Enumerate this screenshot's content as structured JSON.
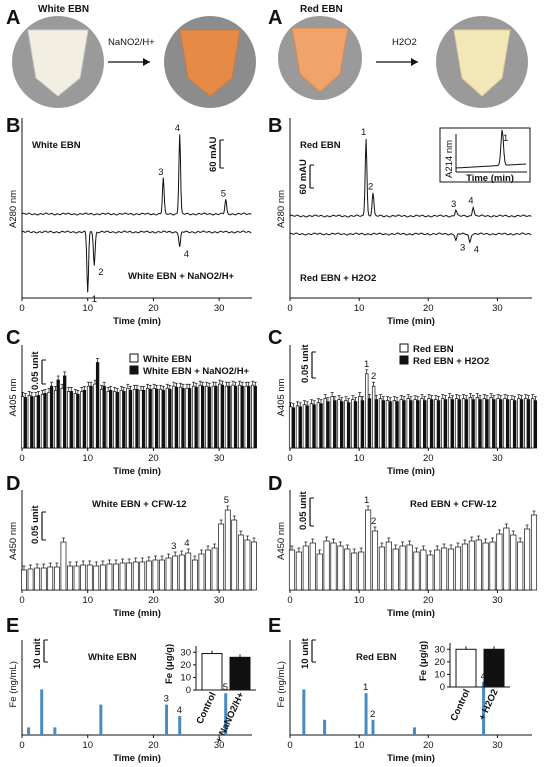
{
  "panels": {
    "A_left": {
      "label": "A",
      "sample_before": "White EBN",
      "arrow_label": "NaNO2/H+",
      "sample_before_color": "#f2efe2",
      "sample_after_color": "#e58a47"
    },
    "A_right": {
      "label": "A",
      "sample_before": "Red EBN",
      "arrow_label": "H2O2",
      "sample_before_color": "#f0a36a",
      "sample_after_color": "#f3e7b8"
    }
  },
  "chart_data": [
    {
      "id": "B_left",
      "panel": "B",
      "type": "line",
      "title": "White EBN",
      "ylabel": "A280 nm",
      "xlabel": "Time (min)",
      "xlim": [
        0,
        35
      ],
      "xticks": [
        0,
        10,
        20,
        30
      ],
      "scale_bar": "60 mAU",
      "series": [
        {
          "name": "White EBN",
          "peaks": [
            {
              "label": "3",
              "x": 21.5,
              "h": 0.45
            },
            {
              "label": "4",
              "x": 24,
              "h": 1.0
            },
            {
              "label": "5",
              "x": 31,
              "h": 0.18
            }
          ]
        },
        {
          "name": "White EBN + NaNO2/H+",
          "peaks": [
            {
              "label": "1",
              "x": 10,
              "h": -1.0
            },
            {
              "label": "2",
              "x": 11,
              "h": -0.55
            },
            {
              "label": "4",
              "x": 24,
              "h": -0.25
            }
          ]
        }
      ]
    },
    {
      "id": "B_right",
      "panel": "B",
      "type": "line",
      "title": "Red EBN",
      "ylabel": "A280 nm",
      "xlabel": "Time (min)",
      "xlim": [
        0,
        35
      ],
      "xticks": [
        0,
        10,
        20,
        30
      ],
      "scale_bar": "60 mAU",
      "inset": {
        "ylabel": "A214 nm",
        "xlabel": "Time (min)",
        "peak": "1"
      },
      "series": [
        {
          "name": "Red EBN",
          "peaks": [
            {
              "label": "1",
              "x": 11,
              "h": 1.0
            },
            {
              "label": "2",
              "x": 12,
              "h": 0.3
            },
            {
              "label": "3",
              "x": 24,
              "h": 0.08
            },
            {
              "label": "4",
              "x": 26.5,
              "h": 0.12
            }
          ]
        },
        {
          "name": "Red EBN + H2O2",
          "peaks": [
            {
              "label": "3",
              "x": 24,
              "h": -0.22
            },
            {
              "label": "4",
              "x": 26,
              "h": -0.28
            }
          ]
        }
      ]
    },
    {
      "id": "C_left",
      "panel": "C",
      "type": "bar",
      "ylabel": "A405 nm",
      "xlabel": "Time (min)",
      "scale_bar": "0.05 unit",
      "xlim": [
        0,
        35
      ],
      "xticks": [
        0,
        10,
        20,
        30
      ],
      "legend": [
        "White EBN",
        "White EBN + NaNO2/H+"
      ],
      "x": [
        0,
        1,
        2,
        3,
        4,
        5,
        6,
        7,
        8,
        9,
        10,
        11,
        12,
        13,
        14,
        15,
        16,
        17,
        18,
        19,
        20,
        21,
        22,
        23,
        24,
        25,
        26,
        27,
        28,
        29,
        30,
        31,
        32,
        33,
        34,
        35
      ],
      "series": [
        {
          "name": "White EBN",
          "values": [
            0.05,
            0.051,
            0.05,
            0.052,
            0.054,
            0.056,
            0.058,
            0.055,
            0.053,
            0.055,
            0.06,
            0.062,
            0.057,
            0.055,
            0.055,
            0.056,
            0.058,
            0.057,
            0.056,
            0.058,
            0.058,
            0.057,
            0.058,
            0.06,
            0.059,
            0.058,
            0.06,
            0.061,
            0.06,
            0.06,
            0.062,
            0.06,
            0.061,
            0.061,
            0.06,
            0.061
          ]
        },
        {
          "name": "White EBN + NaNO2/H+",
          "values": [
            0.049,
            0.05,
            0.051,
            0.053,
            0.06,
            0.066,
            0.07,
            0.055,
            0.052,
            0.056,
            0.06,
            0.083,
            0.06,
            0.056,
            0.054,
            0.055,
            0.056,
            0.057,
            0.056,
            0.057,
            0.057,
            0.056,
            0.057,
            0.059,
            0.058,
            0.058,
            0.059,
            0.06,
            0.059,
            0.06,
            0.061,
            0.06,
            0.06,
            0.06,
            0.06,
            0.06
          ]
        }
      ]
    },
    {
      "id": "C_right",
      "panel": "C",
      "type": "bar",
      "ylabel": "A405 nm",
      "xlabel": "Time (min)",
      "scale_bar": "0.05 unit",
      "xlim": [
        0,
        35
      ],
      "xticks": [
        0,
        10,
        20,
        30
      ],
      "legend": [
        "Red EBN",
        "Red EBN + H2O2"
      ],
      "annotations": [
        {
          "label": "1",
          "x": 11
        },
        {
          "label": "2",
          "x": 12
        }
      ],
      "x": [
        0,
        1,
        2,
        3,
        4,
        5,
        6,
        7,
        8,
        9,
        10,
        11,
        12,
        13,
        14,
        15,
        16,
        17,
        18,
        19,
        20,
        21,
        22,
        23,
        24,
        25,
        26,
        27,
        28,
        29,
        30,
        31,
        32,
        33,
        34,
        35
      ],
      "series": [
        {
          "name": "Red EBN",
          "values": [
            0.04,
            0.041,
            0.042,
            0.043,
            0.044,
            0.048,
            0.05,
            0.047,
            0.046,
            0.047,
            0.05,
            0.072,
            0.06,
            0.048,
            0.046,
            0.046,
            0.047,
            0.048,
            0.047,
            0.048,
            0.048,
            0.047,
            0.048,
            0.049,
            0.048,
            0.048,
            0.049,
            0.049,
            0.048,
            0.049,
            0.048,
            0.048,
            0.047,
            0.048,
            0.048,
            0.048
          ]
        },
        {
          "name": "Red EBN + H2O2",
          "values": [
            0.039,
            0.04,
            0.041,
            0.042,
            0.043,
            0.045,
            0.046,
            0.045,
            0.044,
            0.045,
            0.046,
            0.048,
            0.047,
            0.046,
            0.045,
            0.045,
            0.046,
            0.046,
            0.046,
            0.046,
            0.047,
            0.046,
            0.047,
            0.047,
            0.047,
            0.047,
            0.047,
            0.047,
            0.047,
            0.047,
            0.047,
            0.047,
            0.046,
            0.047,
            0.047,
            0.046
          ]
        }
      ]
    },
    {
      "id": "D_left",
      "panel": "D",
      "type": "bar",
      "title": "White EBN + CFW-12",
      "ylabel": "A450 nm",
      "xlabel": "Time (min)",
      "scale_bar": "0.05 unit",
      "xlim": [
        0,
        35
      ],
      "xticks": [
        0,
        10,
        20,
        30
      ],
      "annotations": [
        {
          "label": "3",
          "x": 23
        },
        {
          "label": "4",
          "x": 25
        },
        {
          "label": "5",
          "x": 31
        }
      ],
      "x": [
        0,
        1,
        2,
        3,
        4,
        5,
        6,
        7,
        8,
        9,
        10,
        11,
        12,
        13,
        14,
        15,
        16,
        17,
        18,
        19,
        20,
        21,
        22,
        23,
        24,
        25,
        26,
        27,
        28,
        29,
        30,
        31,
        32,
        33,
        34,
        35
      ],
      "series": [
        {
          "name": "White EBN + CFW-12",
          "values": [
            0.02,
            0.021,
            0.022,
            0.022,
            0.023,
            0.023,
            0.048,
            0.024,
            0.024,
            0.025,
            0.025,
            0.024,
            0.025,
            0.026,
            0.026,
            0.027,
            0.027,
            0.028,
            0.028,
            0.029,
            0.03,
            0.03,
            0.032,
            0.034,
            0.035,
            0.037,
            0.03,
            0.036,
            0.04,
            0.042,
            0.066,
            0.08,
            0.07,
            0.055,
            0.05,
            0.048
          ]
        }
      ]
    },
    {
      "id": "D_right",
      "panel": "D",
      "type": "bar",
      "title": "Red EBN + CFW-12",
      "ylabel": "A450 nm",
      "xlabel": "Time (min)",
      "scale_bar": "0.05 unit",
      "xlim": [
        0,
        35
      ],
      "xticks": [
        0,
        10,
        20,
        30
      ],
      "annotations": [
        {
          "label": "1",
          "x": 11
        },
        {
          "label": "2",
          "x": 12
        }
      ],
      "x": [
        0,
        1,
        2,
        3,
        4,
        5,
        6,
        7,
        8,
        9,
        10,
        11,
        12,
        13,
        14,
        15,
        16,
        17,
        18,
        19,
        20,
        21,
        22,
        23,
        24,
        25,
        26,
        27,
        28,
        29,
        30,
        31,
        32,
        33,
        34,
        35
      ],
      "series": [
        {
          "name": "Red EBN + CFW-12",
          "values": [
            0.04,
            0.038,
            0.044,
            0.047,
            0.036,
            0.049,
            0.047,
            0.044,
            0.041,
            0.037,
            0.038,
            0.08,
            0.059,
            0.043,
            0.048,
            0.041,
            0.044,
            0.045,
            0.038,
            0.04,
            0.035,
            0.04,
            0.042,
            0.041,
            0.043,
            0.046,
            0.049,
            0.05,
            0.047,
            0.048,
            0.056,
            0.062,
            0.055,
            0.048,
            0.061,
            0.075
          ]
        }
      ]
    },
    {
      "id": "E_left",
      "panel": "E",
      "type": "bar",
      "title": "White EBN",
      "ylabel": "Fe (ng/mL)",
      "xlabel": "Time (min)",
      "scale_bar": "10 unit",
      "xlim": [
        0,
        35
      ],
      "xticks": [
        0,
        10,
        20,
        30
      ],
      "annotations": [
        {
          "label": "3",
          "x": 22
        },
        {
          "label": "4",
          "x": 24
        },
        {
          "label": "5",
          "x": 31
        }
      ],
      "bars": [
        {
          "x": 1,
          "value": 2
        },
        {
          "x": 3,
          "value": 12
        },
        {
          "x": 5,
          "value": 2
        },
        {
          "x": 12,
          "value": 8
        },
        {
          "x": 22,
          "value": 8
        },
        {
          "x": 24,
          "value": 5
        },
        {
          "x": 31,
          "value": 11
        }
      ],
      "inset": {
        "type": "bar",
        "ylabel": "Fe (μg/g)",
        "yticks": [
          0,
          10,
          20,
          30
        ],
        "categories": [
          "Control",
          "+ NaNO2/H+"
        ],
        "values": [
          29,
          26
        ]
      }
    },
    {
      "id": "E_right",
      "panel": "E",
      "type": "bar",
      "title": "Red EBN",
      "ylabel": "Fe (ng/mL)",
      "xlabel": "Time (min)",
      "scale_bar": "10 unit",
      "xlim": [
        0,
        35
      ],
      "xticks": [
        0,
        10,
        20,
        30
      ],
      "annotations": [
        {
          "label": "1",
          "x": 11
        },
        {
          "label": "2",
          "x": 12
        },
        {
          "label": "4",
          "x": 28
        }
      ],
      "bars": [
        {
          "x": 2,
          "value": 12
        },
        {
          "x": 5,
          "value": 4
        },
        {
          "x": 11,
          "value": 11
        },
        {
          "x": 12,
          "value": 4
        },
        {
          "x": 18,
          "value": 2
        },
        {
          "x": 28,
          "value": 14
        }
      ],
      "inset": {
        "type": "bar",
        "ylabel": "Fe (μg/g)",
        "yticks": [
          0,
          10,
          20,
          30
        ],
        "categories": [
          "Control",
          "+ H2O2"
        ],
        "values": [
          30,
          30
        ]
      }
    }
  ],
  "colors": {
    "axis": "#111111",
    "fe_bar": "#4a8bbf",
    "bar_filled": "#111111",
    "bar_open": "#ffffff"
  }
}
